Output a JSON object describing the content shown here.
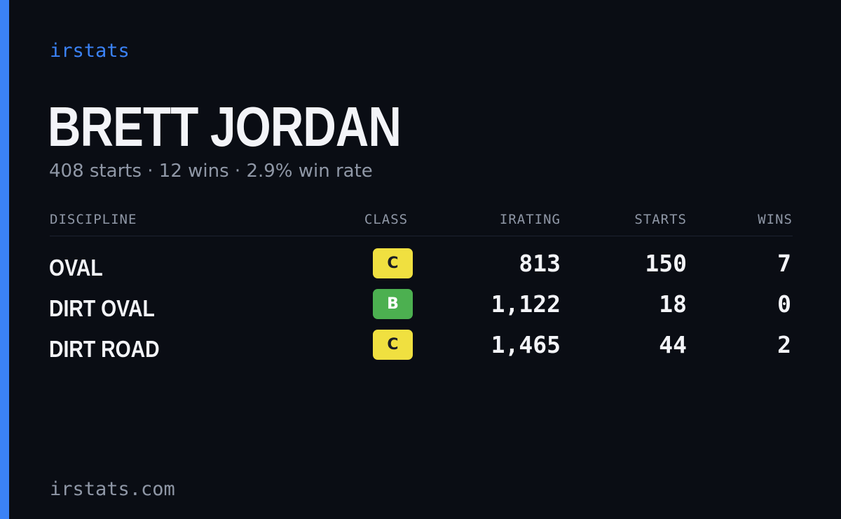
{
  "brand": "irstats",
  "driver": {
    "name": "BRETT JORDAN",
    "summary": "408 starts · 12 wins · 2.9% win rate"
  },
  "table": {
    "headers": {
      "discipline": "DISCIPLINE",
      "class": "CLASS",
      "irating": "IRATING",
      "starts": "STARTS",
      "wins": "WINS"
    },
    "rows": [
      {
        "discipline": "OVAL",
        "class": "C",
        "irating": "813",
        "starts": "150",
        "wins": "7"
      },
      {
        "discipline": "DIRT OVAL",
        "class": "B",
        "irating": "1,122",
        "starts": "18",
        "wins": "0"
      },
      {
        "discipline": "DIRT ROAD",
        "class": "C",
        "irating": "1,465",
        "starts": "44",
        "wins": "2"
      }
    ]
  },
  "footer": {
    "url": "irstats.com"
  },
  "colors": {
    "background": "#0a0d14",
    "accent": "#3b82f6",
    "class_c": "#f0e040",
    "class_b": "#4cb050",
    "text_primary": "#f3f4f8",
    "text_muted": "#8f97a6"
  }
}
